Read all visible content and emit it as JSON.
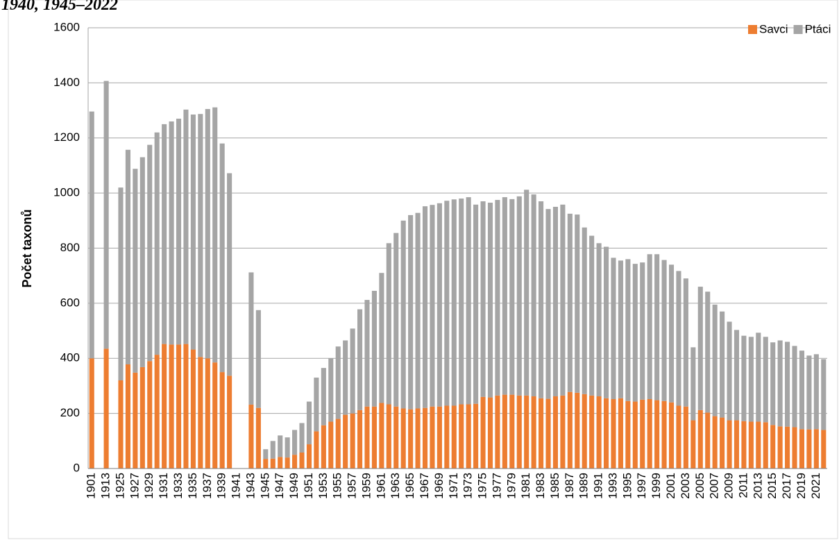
{
  "chart_data": {
    "type": "stacked-bar",
    "title": "1940, 1945–2022",
    "y_label": "Počet taxonů",
    "categories": [
      "1901",
      null,
      "1913",
      null,
      "1925",
      null,
      "1927",
      null,
      "1929",
      null,
      "1931",
      null,
      "1933",
      null,
      "1935",
      null,
      "1937",
      null,
      "1939",
      null,
      "1941",
      null,
      "1943",
      null,
      "1945",
      null,
      "1947",
      null,
      "1949",
      null,
      "1951",
      null,
      "1953",
      null,
      "1955",
      null,
      "1957",
      null,
      "1959",
      null,
      "1961",
      null,
      "1963",
      null,
      "1965",
      null,
      "1967",
      null,
      "1969",
      null,
      "1971",
      null,
      "1973",
      null,
      "1975",
      null,
      "1977",
      null,
      "1979",
      null,
      "1981",
      null,
      "1983",
      null,
      "1985",
      null,
      "1987",
      null,
      "1989",
      null,
      "1991",
      null,
      "1993",
      null,
      "1995",
      null,
      "1997",
      null,
      "1999",
      null,
      "2001",
      null,
      "2003",
      null,
      "2005",
      null,
      "2007",
      null,
      "2009",
      null,
      "2011",
      null,
      "2013",
      null,
      "2015",
      null,
      "2017",
      null,
      "2019",
      null,
      "2021",
      null
    ],
    "series": [
      {
        "name": "Savci",
        "color": "#ed7d31",
        "values": [
          400,
          null,
          435,
          null,
          320,
          378,
          348,
          368,
          390,
          413,
          452,
          450,
          450,
          452,
          432,
          405,
          400,
          385,
          350,
          337,
          null,
          null,
          232,
          220,
          35,
          36,
          42,
          40,
          50,
          58,
          88,
          135,
          157,
          170,
          180,
          195,
          200,
          212,
          225,
          225,
          238,
          233,
          225,
          218,
          215,
          218,
          220,
          225,
          225,
          228,
          228,
          233,
          233,
          235,
          260,
          258,
          265,
          268,
          268,
          265,
          265,
          262,
          255,
          253,
          262,
          265,
          278,
          275,
          270,
          265,
          262,
          255,
          252,
          255,
          245,
          243,
          250,
          252,
          248,
          245,
          240,
          228,
          225,
          175,
          212,
          203,
          190,
          185,
          175,
          175,
          172,
          170,
          170,
          168,
          158,
          153,
          152,
          150,
          143,
          142,
          143,
          140
        ]
      },
      {
        "name": "Ptáci",
        "color": "#a5a5a5",
        "values": [
          896,
          null,
          972,
          null,
          700,
          779,
          740,
          762,
          785,
          807,
          798,
          810,
          820,
          851,
          853,
          882,
          905,
          926,
          830,
          735,
          null,
          null,
          480,
          355,
          35,
          64,
          78,
          73,
          90,
          107,
          155,
          195,
          208,
          230,
          263,
          270,
          308,
          366,
          387,
          420,
          472,
          585,
          630,
          682,
          705,
          710,
          732,
          732,
          738,
          744,
          749,
          747,
          752,
          723,
          710,
          707,
          710,
          717,
          710,
          723,
          747,
          733,
          715,
          689,
          688,
          693,
          647,
          647,
          605,
          580,
          556,
          550,
          513,
          500,
          515,
          500,
          498,
          526,
          530,
          512,
          500,
          489,
          465,
          265,
          448,
          439,
          405,
          385,
          358,
          328,
          310,
          308,
          323,
          310,
          300,
          312,
          308,
          295,
          285,
          268,
          272,
          257
        ]
      }
    ],
    "ylim": [
      0,
      1600
    ],
    "yticks": [
      0,
      200,
      400,
      600,
      800,
      1000,
      1200,
      1400,
      1600
    ],
    "grid": true,
    "legend": "top-right"
  }
}
